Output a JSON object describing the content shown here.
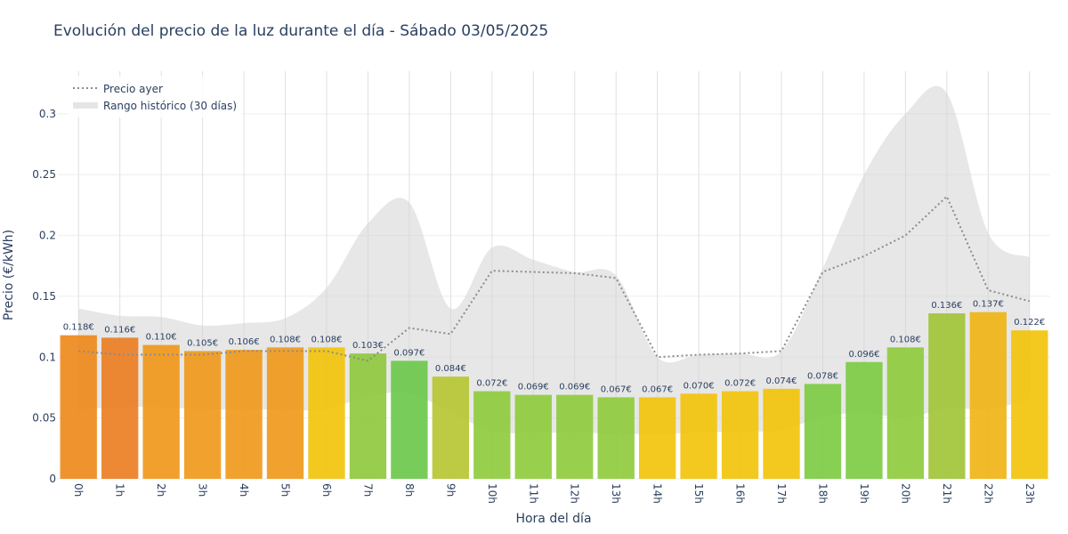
{
  "chart_data": {
    "type": "bar",
    "title": "Evolución del precio de la luz durante el día - Sábado 03/05/2025",
    "xlabel": "Hora del día",
    "ylabel": "Precio (€/kWh)",
    "ylim": [
      0,
      0.335
    ],
    "yticks": [
      0,
      0.05,
      0.1,
      0.15,
      0.2,
      0.25,
      0.3
    ],
    "ytick_labels": [
      "0",
      "0.05",
      "0.1",
      "0.15",
      "0.2",
      "0.25",
      "0.3"
    ],
    "grid": true,
    "legend_position": "top-left",
    "categories": [
      "0h",
      "1h",
      "2h",
      "3h",
      "4h",
      "5h",
      "6h",
      "7h",
      "8h",
      "9h",
      "10h",
      "11h",
      "12h",
      "13h",
      "14h",
      "15h",
      "16h",
      "17h",
      "18h",
      "19h",
      "20h",
      "21h",
      "22h",
      "23h"
    ],
    "series": [
      {
        "type": "bar",
        "values": [
          0.118,
          0.116,
          0.11,
          0.105,
          0.106,
          0.108,
          0.108,
          0.103,
          0.097,
          0.084,
          0.072,
          0.069,
          0.069,
          0.067,
          0.067,
          0.07,
          0.072,
          0.074,
          0.078,
          0.096,
          0.108,
          0.136,
          0.137,
          0.122
        ],
        "labels": [
          "0.118€",
          "0.116€",
          "0.110€",
          "0.105€",
          "0.106€",
          "0.108€",
          "0.108€",
          "0.103€",
          "0.097€",
          "0.084€",
          "0.072€",
          "0.069€",
          "0.069€",
          "0.067€",
          "0.067€",
          "0.070€",
          "0.072€",
          "0.074€",
          "0.078€",
          "0.096€",
          "0.108€",
          "0.136€",
          "0.137€",
          "0.122€"
        ],
        "colors": [
          "#ee8a1c",
          "#ec7f24",
          "#f0981c",
          "#f09a1c",
          "#f09a1c",
          "#f09a1c",
          "#f2c40d",
          "#8fc93e",
          "#6dc94c",
          "#b6c733",
          "#8fcc3e",
          "#8fcc3e",
          "#8fcc3e",
          "#8fcc3e",
          "#f2c40d",
          "#f2c40d",
          "#f2c40d",
          "#f2c40d",
          "#7dcc44",
          "#7dcc44",
          "#8fcc3e",
          "#a2c43a",
          "#f0b416",
          "#f2c40d"
        ]
      },
      {
        "name": "Precio ayer",
        "type": "line",
        "style": "dotted",
        "color": "#8c8c8c",
        "values": [
          0.105,
          0.102,
          0.102,
          0.102,
          0.105,
          0.105,
          0.105,
          0.097,
          0.124,
          0.119,
          0.171,
          0.17,
          0.169,
          0.165,
          0.1,
          0.102,
          0.103,
          0.105,
          0.17,
          0.183,
          0.2,
          0.232,
          0.155,
          0.146
        ]
      },
      {
        "name": "Rango histórico (30 días)",
        "type": "area",
        "color": "#d3d3d3",
        "upper": [
          0.14,
          0.134,
          0.133,
          0.126,
          0.128,
          0.132,
          0.157,
          0.21,
          0.227,
          0.14,
          0.19,
          0.18,
          0.17,
          0.167,
          0.1,
          0.102,
          0.103,
          0.105,
          0.173,
          0.25,
          0.3,
          0.317,
          0.202,
          0.182
        ],
        "lower": [
          0.057,
          0.059,
          0.059,
          0.057,
          0.057,
          0.057,
          0.057,
          0.068,
          0.07,
          0.055,
          0.039,
          0.038,
          0.038,
          0.037,
          0.037,
          0.038,
          0.039,
          0.04,
          0.051,
          0.054,
          0.05,
          0.058,
          0.057,
          0.066
        ]
      }
    ]
  }
}
